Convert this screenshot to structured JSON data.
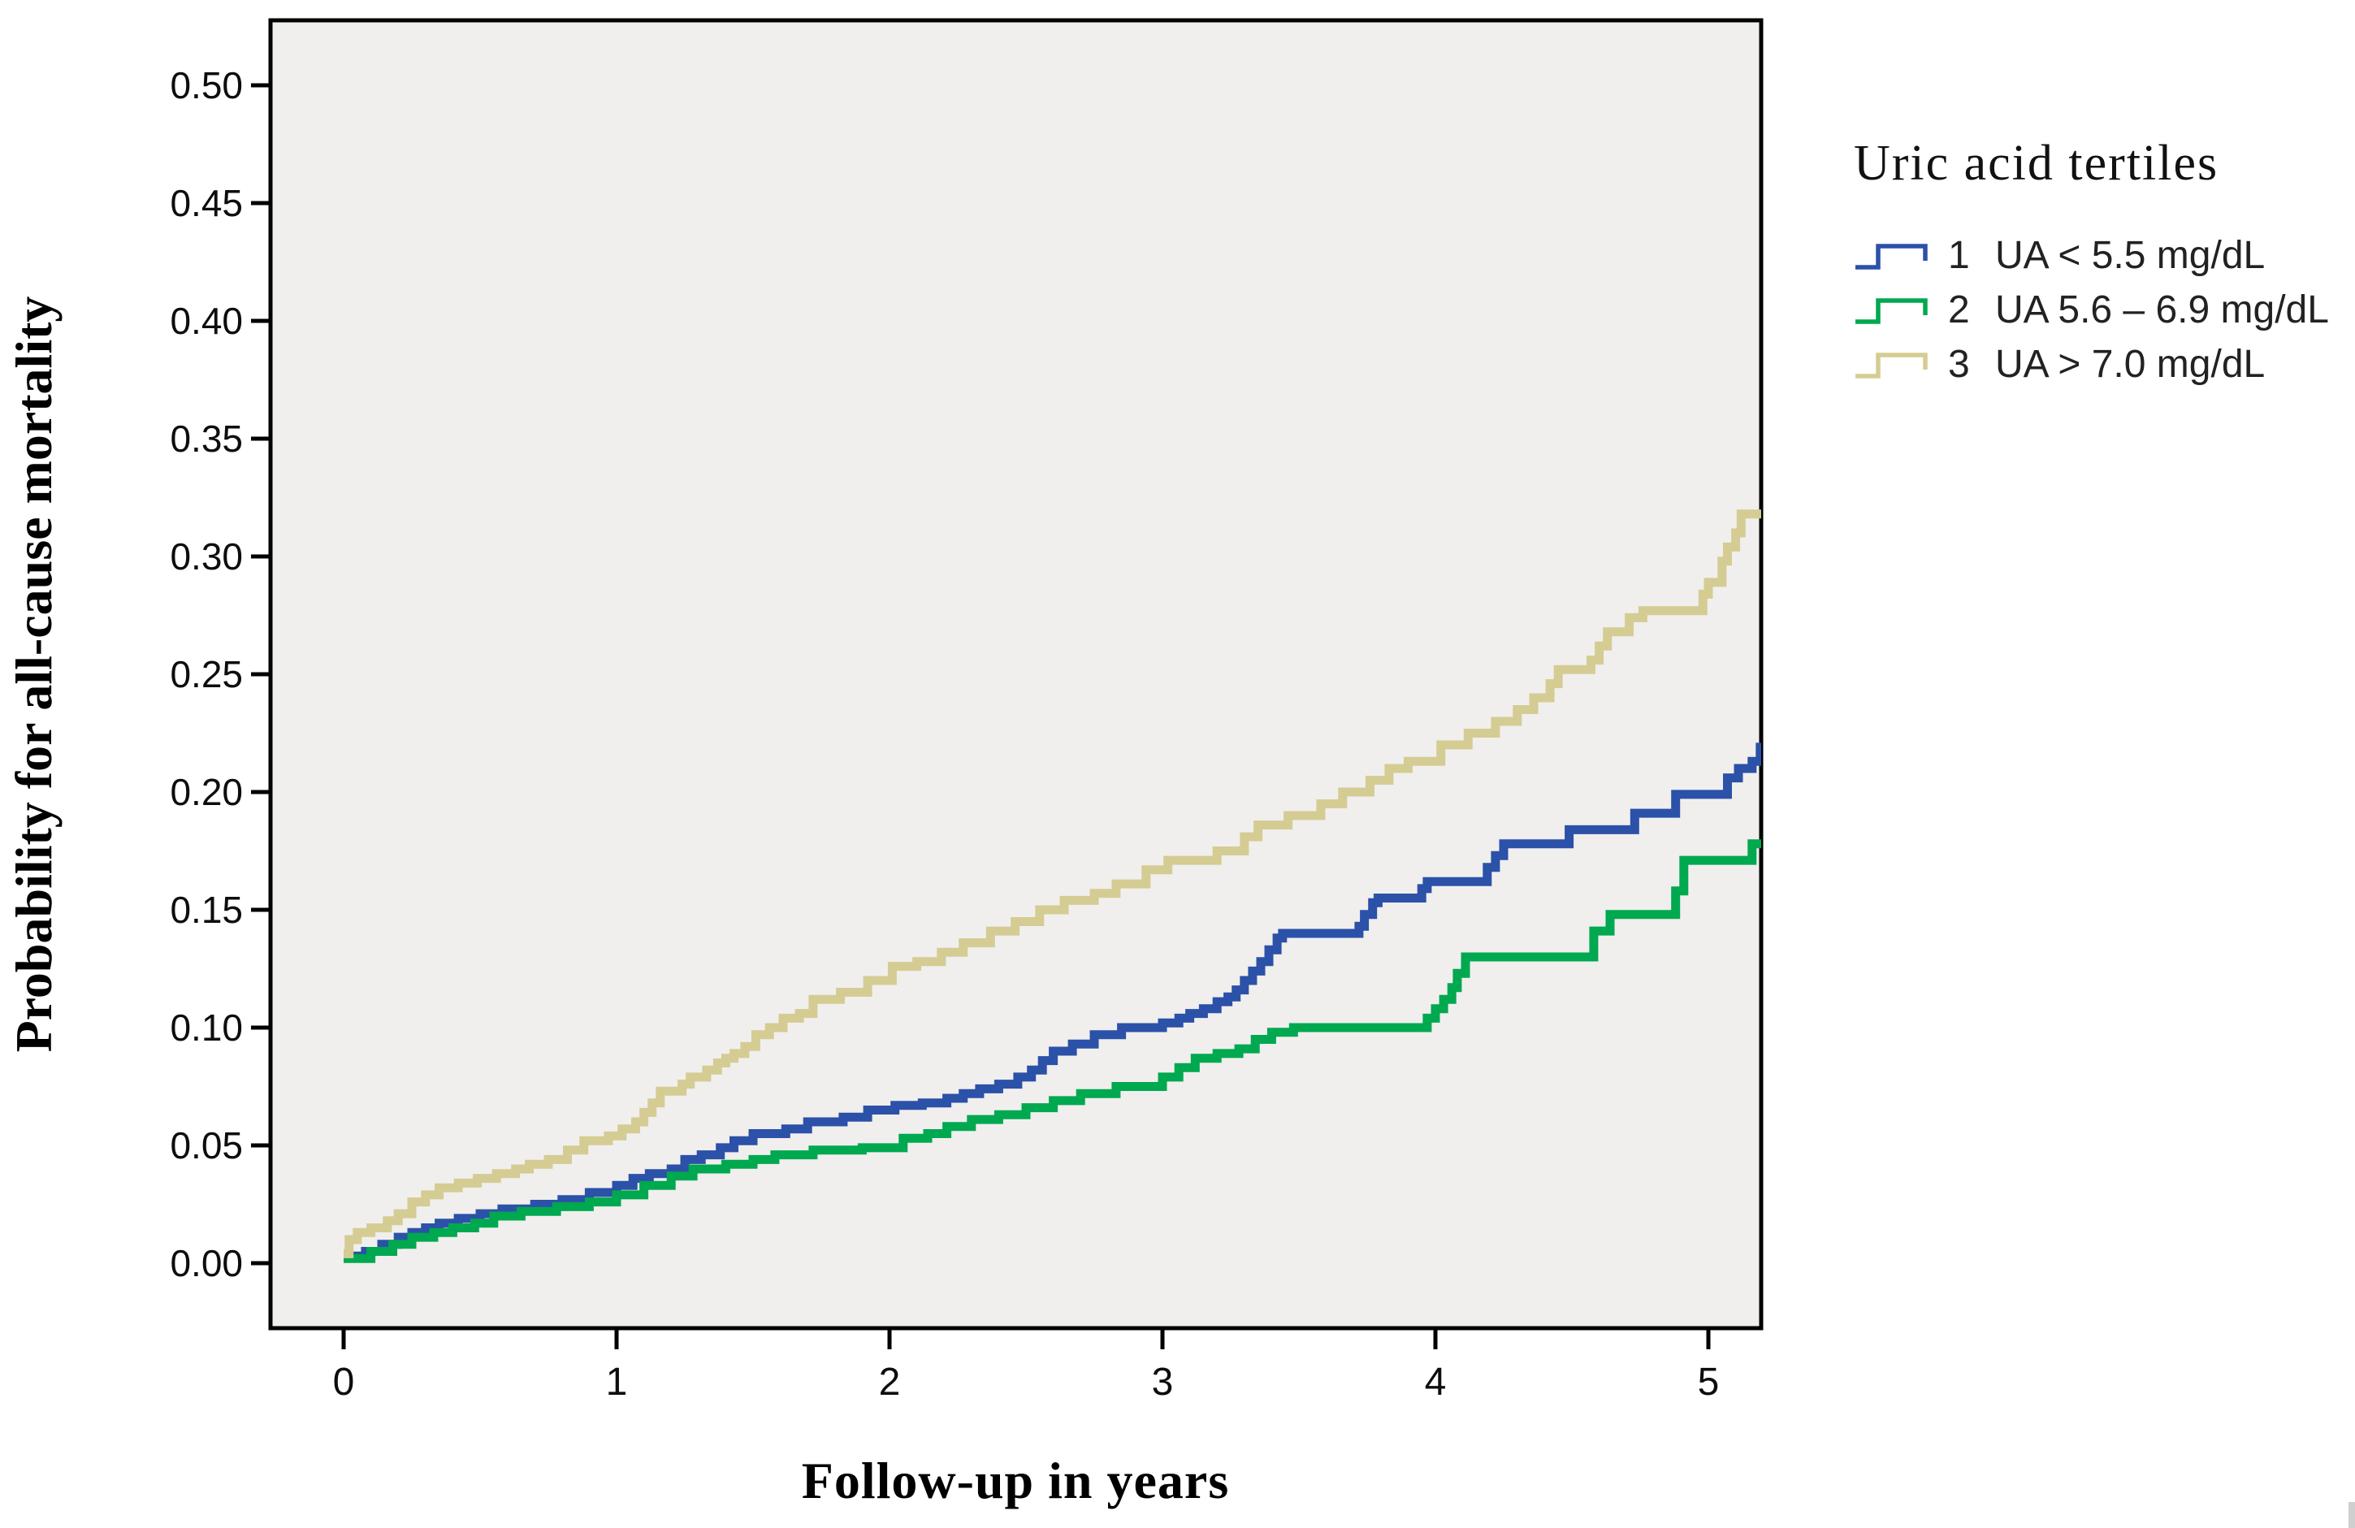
{
  "figure": {
    "background": "#ffffff",
    "plot_background": "#f0efee",
    "axis_color": "#000000"
  },
  "chart_data": {
    "type": "line",
    "subtype": "kaplan-meier-step",
    "title": "",
    "xlabel": "Follow-up in years",
    "ylabel": "Probability for all-cause mortality",
    "xlim": [
      -0.27,
      5.25
    ],
    "ylim": [
      -0.028,
      0.528
    ],
    "x_ticks": [
      0,
      1,
      2,
      3,
      4,
      5
    ],
    "y_ticks": [
      0.0,
      0.05,
      0.1,
      0.15,
      0.2,
      0.25,
      0.3,
      0.35,
      0.4,
      0.45,
      0.5
    ],
    "grid": false,
    "legend": {
      "title": "Uric acid tertiles",
      "position": "right-top-outside"
    },
    "series": [
      {
        "key": "tertile1",
        "legend_num": "1",
        "label": "UA < 5.5 mg/dL",
        "color": "#2b51a8",
        "points": [
          [
            0,
            0.003
          ],
          [
            0.08,
            0.005
          ],
          [
            0.14,
            0.008
          ],
          [
            0.2,
            0.011
          ],
          [
            0.25,
            0.013
          ],
          [
            0.3,
            0.015
          ],
          [
            0.35,
            0.017
          ],
          [
            0.42,
            0.019
          ],
          [
            0.5,
            0.021
          ],
          [
            0.58,
            0.023
          ],
          [
            0.7,
            0.025
          ],
          [
            0.8,
            0.027
          ],
          [
            0.9,
            0.03
          ],
          [
            1.0,
            0.033
          ],
          [
            1.06,
            0.036
          ],
          [
            1.12,
            0.038
          ],
          [
            1.2,
            0.04
          ],
          [
            1.25,
            0.044
          ],
          [
            1.31,
            0.046
          ],
          [
            1.38,
            0.049
          ],
          [
            1.43,
            0.052
          ],
          [
            1.5,
            0.055
          ],
          [
            1.62,
            0.057
          ],
          [
            1.7,
            0.06
          ],
          [
            1.83,
            0.062
          ],
          [
            1.92,
            0.065
          ],
          [
            2.02,
            0.067
          ],
          [
            2.12,
            0.068
          ],
          [
            2.21,
            0.07
          ],
          [
            2.27,
            0.072
          ],
          [
            2.33,
            0.074
          ],
          [
            2.4,
            0.076
          ],
          [
            2.47,
            0.079
          ],
          [
            2.52,
            0.082
          ],
          [
            2.56,
            0.086
          ],
          [
            2.6,
            0.09
          ],
          [
            2.67,
            0.093
          ],
          [
            2.75,
            0.097
          ],
          [
            2.85,
            0.1
          ],
          [
            3.0,
            0.102
          ],
          [
            3.06,
            0.104
          ],
          [
            3.1,
            0.106
          ],
          [
            3.15,
            0.108
          ],
          [
            3.2,
            0.111
          ],
          [
            3.24,
            0.113
          ],
          [
            3.27,
            0.116
          ],
          [
            3.3,
            0.12
          ],
          [
            3.33,
            0.124
          ],
          [
            3.36,
            0.128
          ],
          [
            3.39,
            0.133
          ],
          [
            3.42,
            0.138
          ],
          [
            3.44,
            0.14
          ],
          [
            3.72,
            0.143
          ],
          [
            3.74,
            0.148
          ],
          [
            3.77,
            0.153
          ],
          [
            3.79,
            0.155
          ],
          [
            3.95,
            0.159
          ],
          [
            3.97,
            0.162
          ],
          [
            4.19,
            0.168
          ],
          [
            4.22,
            0.173
          ],
          [
            4.25,
            0.178
          ],
          [
            4.49,
            0.184
          ],
          [
            4.73,
            0.191
          ],
          [
            4.88,
            0.199
          ],
          [
            5.07,
            0.206
          ],
          [
            5.11,
            0.21
          ],
          [
            5.16,
            0.213
          ],
          [
            5.19,
            0.219
          ],
          [
            5.21,
            0.227
          ],
          [
            5.24,
            0.227
          ]
        ]
      },
      {
        "key": "tertile2",
        "legend_num": "2",
        "label": "UA 5.6 – 6.9 mg/dL",
        "color": "#00a84f",
        "points": [
          [
            0,
            0.002
          ],
          [
            0.1,
            0.005
          ],
          [
            0.18,
            0.008
          ],
          [
            0.25,
            0.011
          ],
          [
            0.33,
            0.013
          ],
          [
            0.4,
            0.015
          ],
          [
            0.48,
            0.017
          ],
          [
            0.55,
            0.02
          ],
          [
            0.65,
            0.022
          ],
          [
            0.78,
            0.024
          ],
          [
            0.9,
            0.026
          ],
          [
            1.0,
            0.029
          ],
          [
            1.1,
            0.033
          ],
          [
            1.2,
            0.037
          ],
          [
            1.28,
            0.04
          ],
          [
            1.4,
            0.042
          ],
          [
            1.5,
            0.044
          ],
          [
            1.58,
            0.046
          ],
          [
            1.72,
            0.048
          ],
          [
            1.9,
            0.049
          ],
          [
            2.05,
            0.053
          ],
          [
            2.14,
            0.055
          ],
          [
            2.21,
            0.058
          ],
          [
            2.3,
            0.061
          ],
          [
            2.4,
            0.063
          ],
          [
            2.5,
            0.066
          ],
          [
            2.6,
            0.069
          ],
          [
            2.7,
            0.072
          ],
          [
            2.83,
            0.075
          ],
          [
            3.0,
            0.079
          ],
          [
            3.06,
            0.083
          ],
          [
            3.12,
            0.087
          ],
          [
            3.2,
            0.089
          ],
          [
            3.28,
            0.091
          ],
          [
            3.34,
            0.095
          ],
          [
            3.4,
            0.098
          ],
          [
            3.48,
            0.1
          ],
          [
            3.97,
            0.104
          ],
          [
            4.0,
            0.108
          ],
          [
            4.03,
            0.112
          ],
          [
            4.06,
            0.117
          ],
          [
            4.08,
            0.123
          ],
          [
            4.11,
            0.13
          ],
          [
            4.58,
            0.141
          ],
          [
            4.64,
            0.148
          ],
          [
            4.88,
            0.158
          ],
          [
            4.91,
            0.171
          ],
          [
            5.16,
            0.178
          ],
          [
            5.21,
            0.185
          ],
          [
            5.24,
            0.185
          ]
        ]
      },
      {
        "key": "tertile3",
        "legend_num": "3",
        "label": "UA > 7.0 mg/dL",
        "color": "#d5cc93",
        "points": [
          [
            0,
            0.004
          ],
          [
            0.02,
            0.01
          ],
          [
            0.05,
            0.013
          ],
          [
            0.1,
            0.015
          ],
          [
            0.16,
            0.018
          ],
          [
            0.2,
            0.021
          ],
          [
            0.25,
            0.026
          ],
          [
            0.3,
            0.029
          ],
          [
            0.35,
            0.032
          ],
          [
            0.42,
            0.034
          ],
          [
            0.49,
            0.036
          ],
          [
            0.56,
            0.038
          ],
          [
            0.63,
            0.04
          ],
          [
            0.68,
            0.042
          ],
          [
            0.75,
            0.044
          ],
          [
            0.82,
            0.048
          ],
          [
            0.88,
            0.052
          ],
          [
            0.97,
            0.054
          ],
          [
            1.02,
            0.057
          ],
          [
            1.07,
            0.06
          ],
          [
            1.1,
            0.064
          ],
          [
            1.13,
            0.068
          ],
          [
            1.16,
            0.073
          ],
          [
            1.24,
            0.076
          ],
          [
            1.27,
            0.079
          ],
          [
            1.33,
            0.082
          ],
          [
            1.37,
            0.085
          ],
          [
            1.4,
            0.087
          ],
          [
            1.43,
            0.089
          ],
          [
            1.47,
            0.092
          ],
          [
            1.51,
            0.097
          ],
          [
            1.56,
            0.1
          ],
          [
            1.61,
            0.104
          ],
          [
            1.67,
            0.106
          ],
          [
            1.72,
            0.112
          ],
          [
            1.82,
            0.115
          ],
          [
            1.92,
            0.12
          ],
          [
            2.01,
            0.126
          ],
          [
            2.1,
            0.128
          ],
          [
            2.19,
            0.132
          ],
          [
            2.27,
            0.136
          ],
          [
            2.37,
            0.141
          ],
          [
            2.46,
            0.145
          ],
          [
            2.55,
            0.15
          ],
          [
            2.64,
            0.154
          ],
          [
            2.75,
            0.157
          ],
          [
            2.83,
            0.161
          ],
          [
            2.94,
            0.167
          ],
          [
            3.02,
            0.171
          ],
          [
            3.2,
            0.175
          ],
          [
            3.3,
            0.181
          ],
          [
            3.35,
            0.186
          ],
          [
            3.46,
            0.19
          ],
          [
            3.58,
            0.195
          ],
          [
            3.66,
            0.2
          ],
          [
            3.76,
            0.205
          ],
          [
            3.83,
            0.21
          ],
          [
            3.9,
            0.213
          ],
          [
            4.02,
            0.22
          ],
          [
            4.12,
            0.225
          ],
          [
            4.22,
            0.23
          ],
          [
            4.3,
            0.235
          ],
          [
            4.36,
            0.24
          ],
          [
            4.42,
            0.246
          ],
          [
            4.45,
            0.252
          ],
          [
            4.57,
            0.256
          ],
          [
            4.6,
            0.262
          ],
          [
            4.63,
            0.268
          ],
          [
            4.71,
            0.274
          ],
          [
            4.76,
            0.277
          ],
          [
            4.98,
            0.284
          ],
          [
            5.0,
            0.289
          ],
          [
            5.05,
            0.298
          ],
          [
            5.07,
            0.304
          ],
          [
            5.1,
            0.31
          ],
          [
            5.12,
            0.318
          ],
          [
            5.24,
            0.318
          ]
        ]
      }
    ]
  }
}
